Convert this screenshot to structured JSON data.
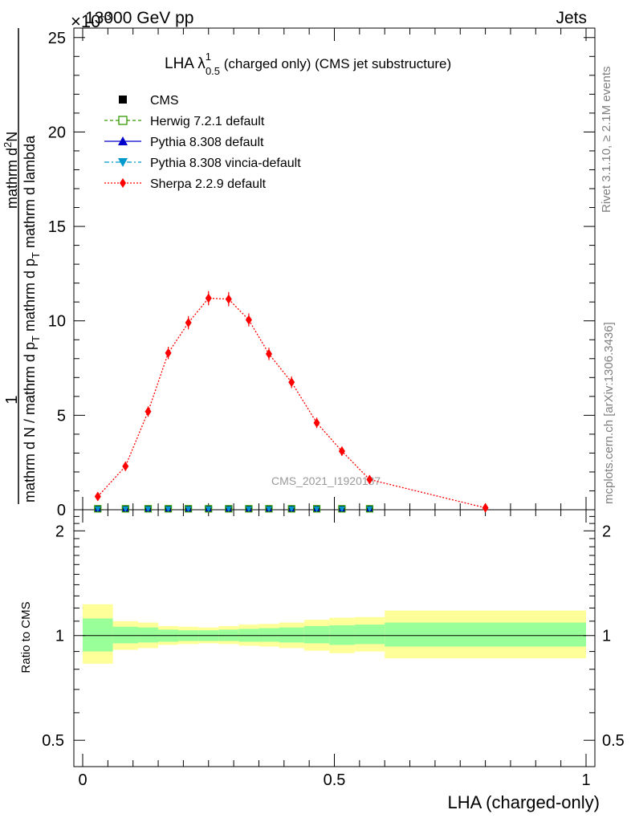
{
  "header": {
    "energy": "13000 GeV pp",
    "process": "Jets",
    "exponent": "×10",
    "exponent_power": "-3"
  },
  "side_labels": {
    "rivet": "Rivet 3.1.10, ≥ 2.1M events",
    "mcplots": "mcplots.cern.ch [arXiv:1306.3436]"
  },
  "main_panel": {
    "title_main": "LHA λ",
    "title_sup": "1",
    "title_sub": "0.5",
    "title_rest": " (charged only) (CMS jet substructure)",
    "ylabel_numerator": "1",
    "ylabel_denominator": "mathrm d N / mathrm d p",
    "ylabel_denominator_sub": "T",
    "ylabel_denominator_rest": "mathrm d p",
    "ylabel_denominator_sub2": "T",
    "ylabel_denominator_rest2": "mathrm d lambda",
    "ylabel_inner": "mathrm d",
    "ylabel_inner_sup": "2",
    "ylabel_inner_rest": "N",
    "watermark": "CMS_2021_I1920187",
    "yticks": [
      "0",
      "5",
      "10",
      "15",
      "20",
      "25"
    ]
  },
  "ratio_panel": {
    "ylabel": "Ratio to CMS",
    "yticks": [
      "0.5",
      "1",
      "2"
    ],
    "xticks": [
      "0",
      "0.5",
      "1"
    ],
    "xlabel": "LHA (charged-only)"
  },
  "legend": [
    {
      "label": "CMS",
      "color": "#000000",
      "marker": "square-filled",
      "line": "none"
    },
    {
      "label": "Herwig 7.2.1 default",
      "color": "#339900",
      "marker": "square-open",
      "line": "dashed"
    },
    {
      "label": "Pythia 8.308 default",
      "color": "#0000cc",
      "marker": "triangle-up",
      "line": "solid"
    },
    {
      "label": "Pythia 8.308 vincia-default",
      "color": "#0099cc",
      "marker": "triangle-down",
      "line": "dashdot"
    },
    {
      "label": "Sherpa 2.2.9 default",
      "color": "#ff0000",
      "marker": "diamond",
      "line": "dotted"
    }
  ],
  "chart_data": {
    "type": "line",
    "x_range": [
      0,
      1
    ],
    "y_range": [
      0,
      25.5
    ],
    "y_scale": "×10^-3",
    "bins": [
      {
        "lo": 0.0,
        "hi": 0.06
      },
      {
        "lo": 0.06,
        "hi": 0.11
      },
      {
        "lo": 0.11,
        "hi": 0.15
      },
      {
        "lo": 0.15,
        "hi": 0.19
      },
      {
        "lo": 0.19,
        "hi": 0.23
      },
      {
        "lo": 0.23,
        "hi": 0.27
      },
      {
        "lo": 0.27,
        "hi": 0.31
      },
      {
        "lo": 0.31,
        "hi": 0.35
      },
      {
        "lo": 0.35,
        "hi": 0.39
      },
      {
        "lo": 0.39,
        "hi": 0.44
      },
      {
        "lo": 0.44,
        "hi": 0.49
      },
      {
        "lo": 0.49,
        "hi": 0.54
      },
      {
        "lo": 0.54,
        "hi": 0.6
      },
      {
        "lo": 0.6,
        "hi": 1.0
      }
    ],
    "sherpa": {
      "name": "Sherpa 2.2.9 default",
      "x": [
        0.03,
        0.085,
        0.13,
        0.17,
        0.21,
        0.25,
        0.29,
        0.33,
        0.37,
        0.415,
        0.465,
        0.515,
        0.57,
        0.8
      ],
      "y": [
        0.7,
        2.3,
        5.2,
        8.3,
        9.9,
        11.2,
        11.15,
        10.05,
        8.25,
        6.75,
        4.6,
        3.1,
        1.6,
        0.1
      ],
      "err": [
        0.1,
        0.12,
        0.15,
        0.2,
        0.22,
        0.25,
        0.25,
        0.22,
        0.2,
        0.18,
        0.15,
        0.12,
        0.1,
        0.05
      ]
    },
    "near_zero_series": {
      "names": [
        "CMS",
        "Herwig 7.2.1 default",
        "Pythia 8.308 default",
        "Pythia 8.308 vincia-default"
      ],
      "x": [
        0.03,
        0.085,
        0.13,
        0.17,
        0.21,
        0.25,
        0.29,
        0.33,
        0.37,
        0.415,
        0.465,
        0.515,
        0.57
      ],
      "y": [
        0.05,
        0.05,
        0.05,
        0.05,
        0.05,
        0.05,
        0.05,
        0.05,
        0.05,
        0.05,
        0.05,
        0.05,
        0.05
      ]
    },
    "ratio": {
      "y_range": [
        0.42,
        2.3
      ],
      "y_scale": "log",
      "reference": 1,
      "inner_band": [
        [
          0.9,
          1.12
        ],
        [
          0.95,
          1.06
        ],
        [
          0.955,
          1.055
        ],
        [
          0.96,
          1.04
        ],
        [
          0.965,
          1.035
        ],
        [
          0.965,
          1.035
        ],
        [
          0.965,
          1.04
        ],
        [
          0.96,
          1.045
        ],
        [
          0.96,
          1.05
        ],
        [
          0.955,
          1.055
        ],
        [
          0.95,
          1.065
        ],
        [
          0.94,
          1.07
        ],
        [
          0.945,
          1.075
        ],
        [
          0.93,
          1.09
        ]
      ],
      "outer_band": [
        [
          0.83,
          1.23
        ],
        [
          0.91,
          1.1
        ],
        [
          0.92,
          1.09
        ],
        [
          0.94,
          1.065
        ],
        [
          0.945,
          1.06
        ],
        [
          0.95,
          1.055
        ],
        [
          0.945,
          1.065
        ],
        [
          0.935,
          1.075
        ],
        [
          0.93,
          1.08
        ],
        [
          0.92,
          1.09
        ],
        [
          0.905,
          1.11
        ],
        [
          0.89,
          1.125
        ],
        [
          0.9,
          1.13
        ],
        [
          0.86,
          1.18
        ]
      ],
      "inner_color": "#99ff99",
      "outer_color": "#ffff99"
    }
  }
}
